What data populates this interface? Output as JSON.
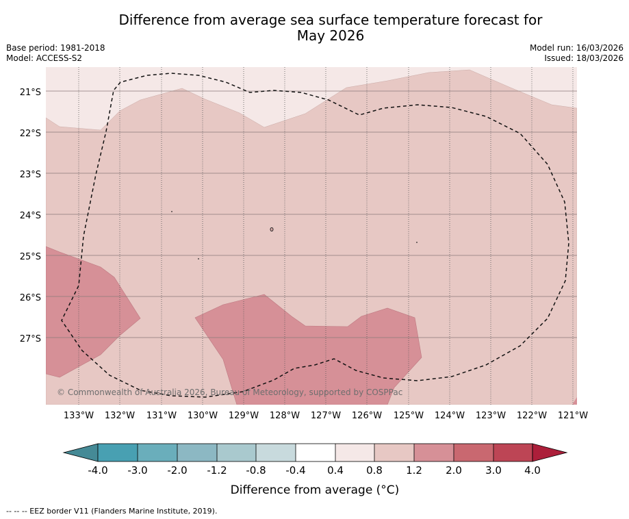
{
  "header": {
    "title_line1": "Difference from average sea surface temperature forecast for",
    "title_line2": "May 2026",
    "base_period": "Base period: 1981-2018",
    "model": "Model: ACCESS-S2",
    "model_run": "Model run: 16/03/2026",
    "issued": "Issued: 18/03/2026"
  },
  "map": {
    "lat_labels": [
      "21°S",
      "22°S",
      "23°S",
      "24°S",
      "25°S",
      "26°S",
      "27°S"
    ],
    "lon_labels": [
      "133°W",
      "132°W",
      "131°W",
      "130°W",
      "129°W",
      "128°W",
      "127°W",
      "126°W",
      "125°W",
      "124°W",
      "123°W",
      "122°W",
      "121°W"
    ],
    "copyright": "© Commonwealth of Australia 2026, Bureau of Meteorology, supported by COSPPac",
    "colors": {
      "band_0p4_0p8": "#f5e8e7",
      "band_0p8_1p2": "#e7c8c4",
      "band_1p2_2p0": "#d69097"
    }
  },
  "colorbar": {
    "tick_labels": [
      "-4.0",
      "-3.0",
      "-2.0",
      "-1.2",
      "-0.8",
      "-0.4",
      "0.4",
      "0.8",
      "1.2",
      "2.0",
      "3.0",
      "4.0"
    ],
    "colors": [
      "#458a96",
      "#48a0b2",
      "#6aaebb",
      "#8cb8c3",
      "#a9c9ce",
      "#c8dadd",
      "#ffffff",
      "#f5e8e7",
      "#e7c8c4",
      "#d69097",
      "#c96870",
      "#bd4555",
      "#ac1f3a"
    ],
    "label": "Difference from average (°C)"
  },
  "footer": {
    "eez_note": "--  --  -- EEZ border V11 (Flanders Marine Institute, 2019)."
  }
}
